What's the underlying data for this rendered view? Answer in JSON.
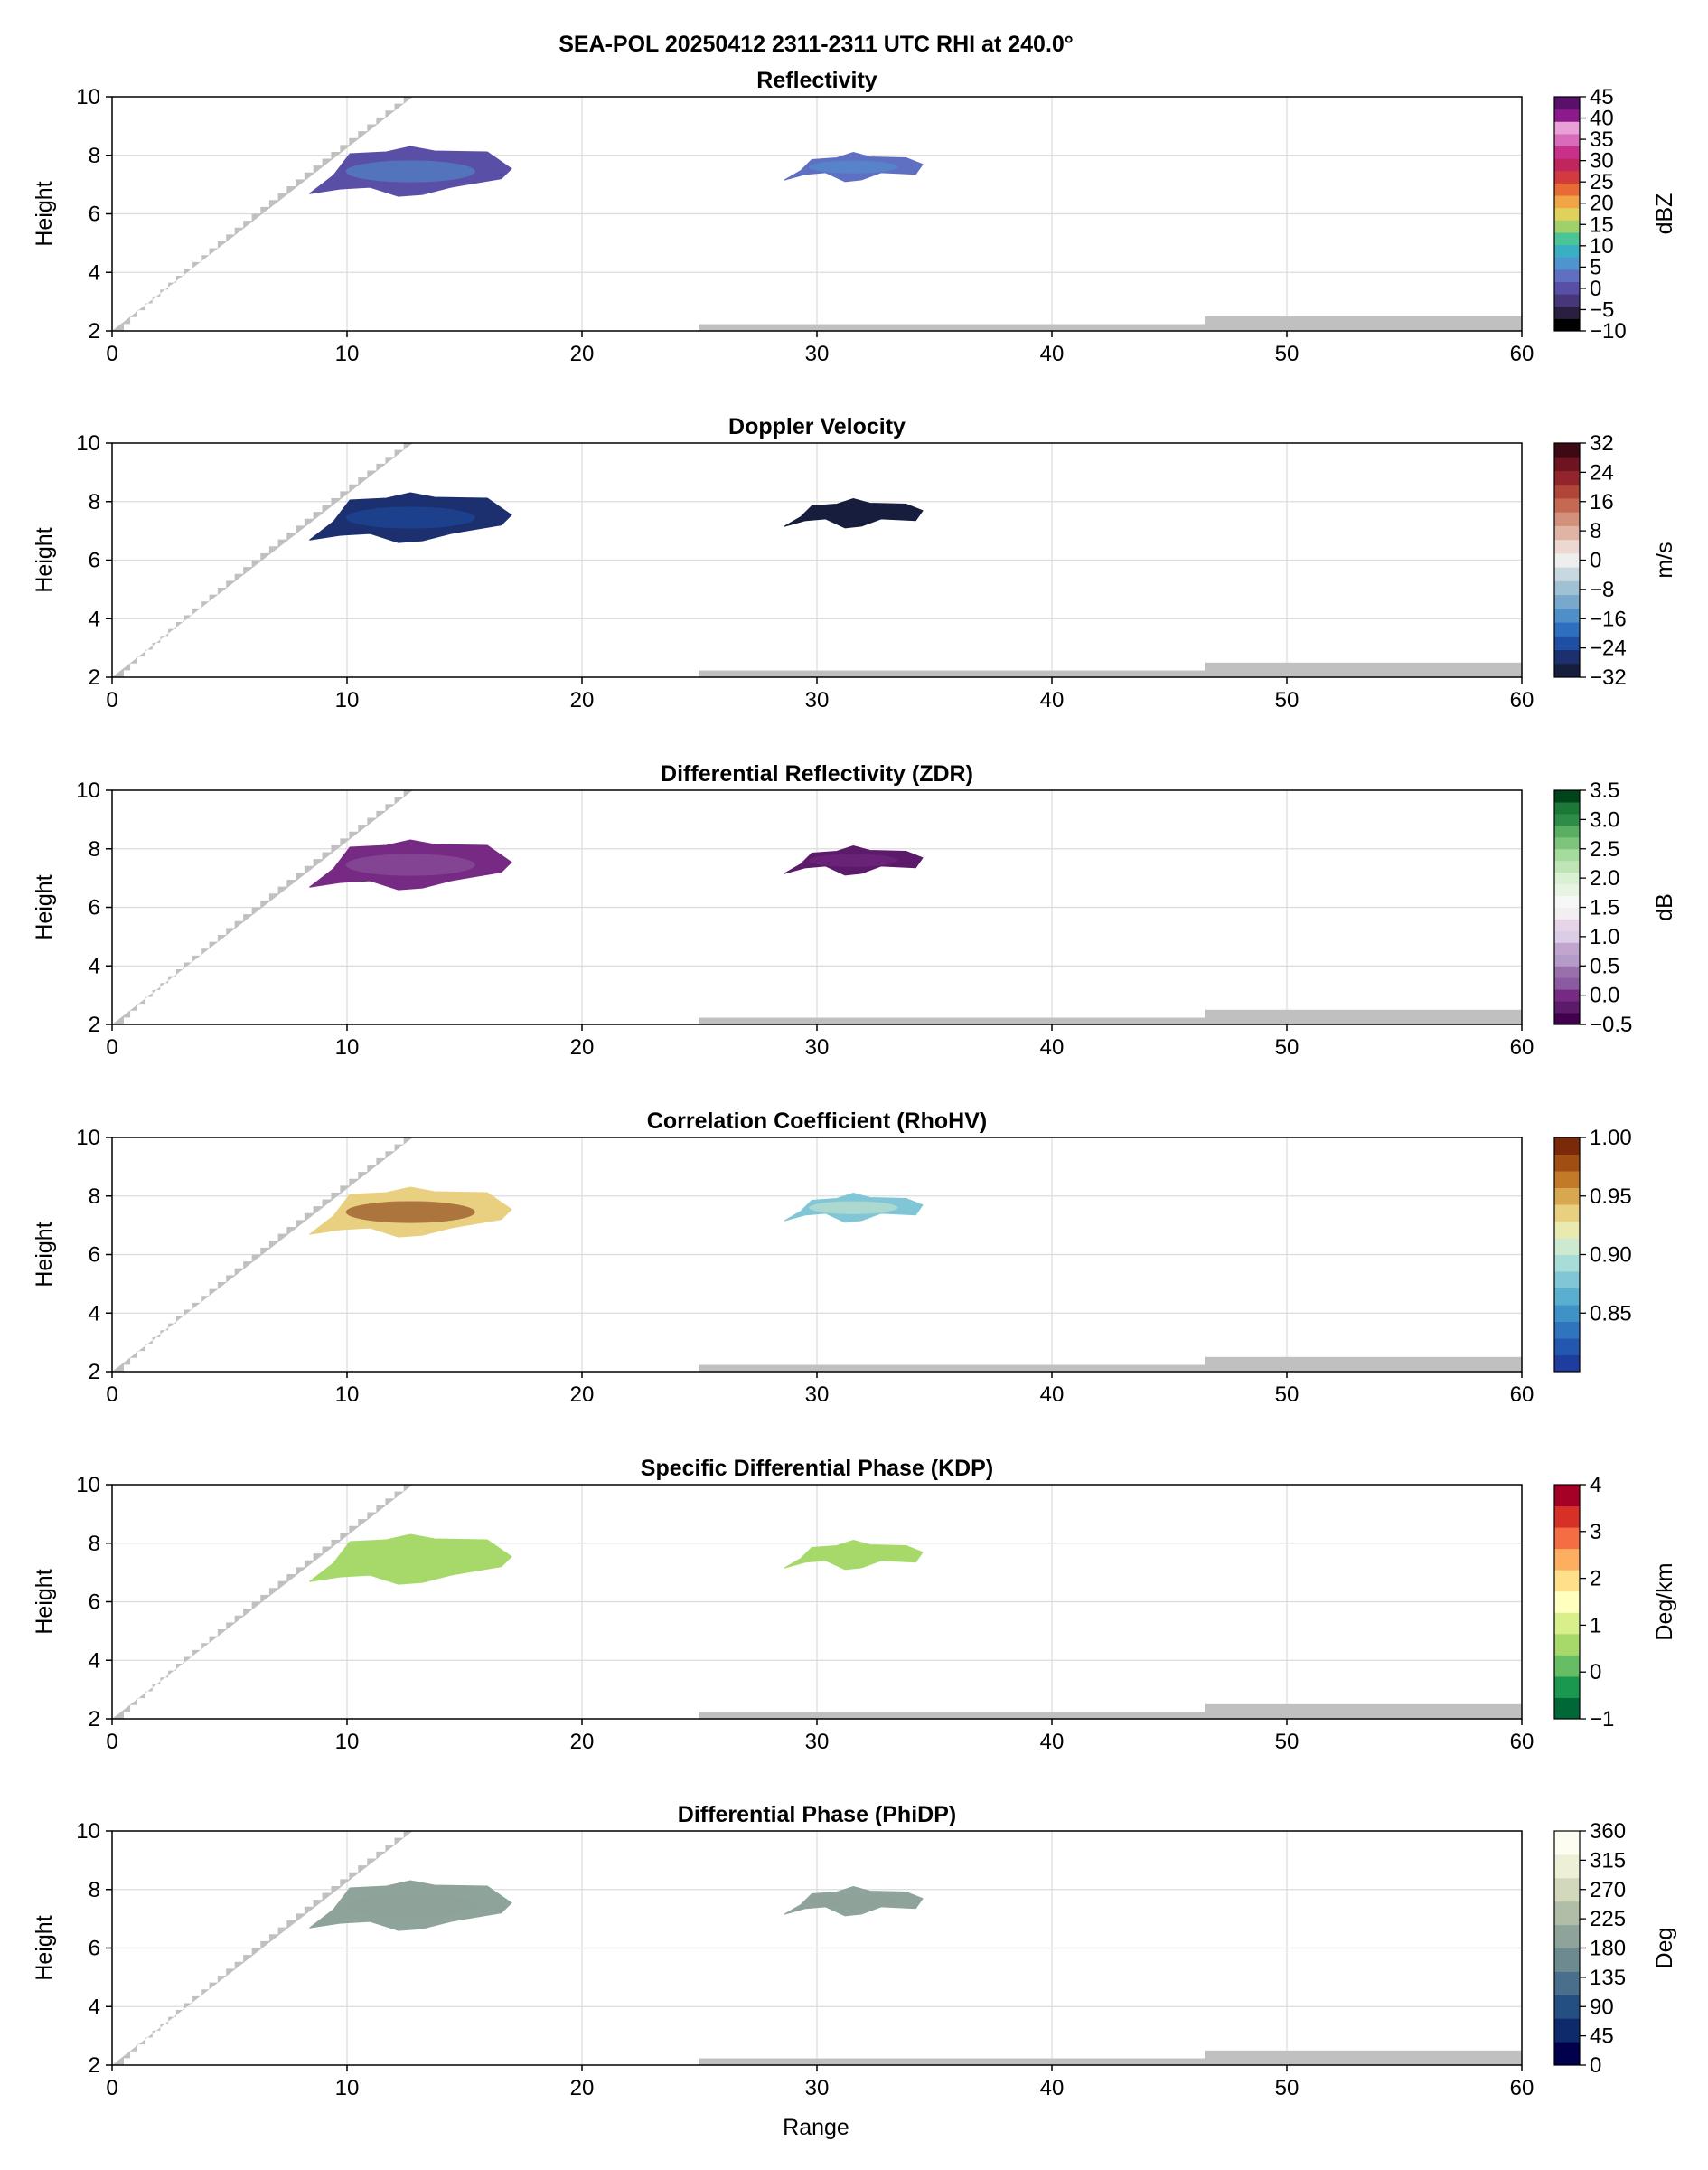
{
  "figure": {
    "suptitle": "SEA-POL 20250412 2311-2311 UTC RHI at 240.0°",
    "xlabel": "Range"
  },
  "colors": {
    "background_fill": "#c0c0c0",
    "grid": "#dcdcdc"
  },
  "chart_data": [
    {
      "type": "heatmap",
      "title": "Reflectivity",
      "xlabel": "",
      "ylabel": "Height",
      "xlim": [
        0,
        60
      ],
      "ylim": [
        2,
        10
      ],
      "xticks": [
        "0",
        "10",
        "20",
        "30",
        "40",
        "50",
        "60"
      ],
      "yticks": [
        "2",
        "4",
        "6",
        "8",
        "10"
      ],
      "grid": true,
      "colorbar": {
        "label": "dBZ",
        "range": [
          -10,
          45
        ],
        "ticks": [
          "45",
          "40",
          "35",
          "30",
          "25",
          "20",
          "15",
          "10",
          "5",
          "0",
          "−5",
          "−10"
        ],
        "tick_values": [
          45,
          40,
          35,
          30,
          25,
          20,
          15,
          10,
          5,
          0,
          -5,
          -10
        ],
        "colors": [
          "#000000",
          "#2b1f3f",
          "#47377a",
          "#5a4fa6",
          "#5f6fc2",
          "#4f93cf",
          "#3aaec2",
          "#4cc596",
          "#9fd06a",
          "#e0d15c",
          "#f0a646",
          "#e86a36",
          "#d23a3e",
          "#c0265e",
          "#c8308a",
          "#d96cb8",
          "#e8a0d6",
          "#8c1a8c",
          "#5a0f6a"
        ]
      },
      "echoes": [
        {
          "range_start": 8.4,
          "range_end": 17.0,
          "height_bottom": 6.6,
          "height_top": 8.3,
          "values": [
            -3,
            4
          ]
        },
        {
          "range_start": 28.6,
          "range_end": 34.5,
          "height_bottom": 7.1,
          "height_top": 8.1,
          "values": [
            1,
            5
          ]
        }
      ]
    },
    {
      "type": "heatmap",
      "title": "Doppler Velocity",
      "xlabel": "",
      "ylabel": "Height",
      "xlim": [
        0,
        60
      ],
      "ylim": [
        2,
        10
      ],
      "xticks": [
        "0",
        "10",
        "20",
        "30",
        "40",
        "50",
        "60"
      ],
      "yticks": [
        "2",
        "4",
        "6",
        "8",
        "10"
      ],
      "grid": true,
      "colorbar": {
        "label": "m/s",
        "range": [
          -32,
          32
        ],
        "ticks": [
          "32",
          "24",
          "16",
          "8",
          "0",
          "−8",
          "−16",
          "−24",
          "−32"
        ],
        "tick_values": [
          32,
          24,
          16,
          8,
          0,
          -8,
          -16,
          -24,
          -32
        ],
        "colors": [
          "#171d3c",
          "#1c2f6e",
          "#1f4fa5",
          "#2e6fc0",
          "#4f8fc8",
          "#78a8cc",
          "#a0c0d4",
          "#c8d8e0",
          "#eeeeee",
          "#ecd8d0",
          "#dfb4a4",
          "#d3907a",
          "#c46a52",
          "#b0453a",
          "#94242c",
          "#6e1420",
          "#3d0a14"
        ]
      },
      "echoes": [
        {
          "range_start": 8.4,
          "range_end": 17.0,
          "height_bottom": 6.6,
          "height_top": 8.3,
          "values": [
            -28,
            -25
          ]
        },
        {
          "range_start": 28.6,
          "range_end": 34.5,
          "height_bottom": 7.1,
          "height_top": 8.1,
          "values": [
            -32,
            -31
          ]
        }
      ]
    },
    {
      "type": "heatmap",
      "title": "Differential Reflectivity (ZDR)",
      "xlabel": "",
      "ylabel": "Height",
      "xlim": [
        0,
        60
      ],
      "ylim": [
        2,
        10
      ],
      "xticks": [
        "0",
        "10",
        "20",
        "30",
        "40",
        "50",
        "60"
      ],
      "yticks": [
        "2",
        "4",
        "6",
        "8",
        "10"
      ],
      "grid": true,
      "colorbar": {
        "label": "dB",
        "range": [
          -0.5,
          3.5
        ],
        "ticks": [
          "3.5",
          "3.0",
          "2.5",
          "2.0",
          "1.5",
          "1.0",
          "0.5",
          "0.0",
          "−0.5"
        ],
        "tick_values": [
          3.5,
          3.0,
          2.5,
          2.0,
          1.5,
          1.0,
          0.5,
          0.0,
          -0.5
        ],
        "colors": [
          "#40004b",
          "#5c1a6b",
          "#762a83",
          "#8c5aa0",
          "#9970ab",
          "#b59cc8",
          "#c2a5cf",
          "#dccde6",
          "#e7d4e8",
          "#f2eef2",
          "#f7f7f7",
          "#e8f3e3",
          "#d9f0d3",
          "#bfe5b6",
          "#a6dba0",
          "#7fc47d",
          "#5aae61",
          "#2e8c48",
          "#1b7837",
          "#00441b"
        ]
      },
      "echoes": [
        {
          "range_start": 8.4,
          "range_end": 17.0,
          "height_bottom": 6.6,
          "height_top": 8.3,
          "values": [
            -0.5,
            0.2
          ]
        },
        {
          "range_start": 28.6,
          "range_end": 34.5,
          "height_bottom": 7.1,
          "height_top": 8.1,
          "values": [
            -0.5,
            0.0
          ]
        }
      ]
    },
    {
      "type": "heatmap",
      "title": "Correlation Coefficient (RhoHV)",
      "xlabel": "",
      "ylabel": "Height",
      "xlim": [
        0,
        60
      ],
      "ylim": [
        2,
        10
      ],
      "xticks": [
        "0",
        "10",
        "20",
        "30",
        "40",
        "50",
        "60"
      ],
      "yticks": [
        "2",
        "4",
        "6",
        "8",
        "10"
      ],
      "grid": true,
      "colorbar": {
        "label": "",
        "range": [
          0.8,
          1.0
        ],
        "ticks": [
          "1.00",
          "0.95",
          "0.90",
          "0.85"
        ],
        "tick_values": [
          1.0,
          0.95,
          0.9,
          0.85
        ],
        "colors": [
          "#1f3d9c",
          "#2458b0",
          "#2f74bd",
          "#3f92c6",
          "#5aaecf",
          "#80c6d6",
          "#a8dcd8",
          "#cde9cf",
          "#eaeab0",
          "#e9d080",
          "#d8a850",
          "#c27a28",
          "#a14e12",
          "#7a2a08"
        ]
      },
      "echoes": [
        {
          "range_start": 8.4,
          "range_end": 17.0,
          "height_bottom": 6.6,
          "height_top": 8.3,
          "values": [
            0.88,
            1.0
          ]
        },
        {
          "range_start": 28.6,
          "range_end": 34.5,
          "height_bottom": 7.1,
          "height_top": 8.1,
          "values": [
            0.86,
            0.9
          ]
        }
      ]
    },
    {
      "type": "heatmap",
      "title": "Specific Differential Phase (KDP)",
      "xlabel": "",
      "ylabel": "Height",
      "xlim": [
        0,
        60
      ],
      "ylim": [
        2,
        10
      ],
      "xticks": [
        "0",
        "10",
        "20",
        "30",
        "40",
        "50",
        "60"
      ],
      "yticks": [
        "2",
        "4",
        "6",
        "8",
        "10"
      ],
      "grid": true,
      "colorbar": {
        "label": "Deg/km",
        "range": [
          -1,
          4
        ],
        "ticks": [
          "4",
          "3",
          "2",
          "1",
          "0",
          "−1"
        ],
        "tick_values": [
          4,
          3,
          2,
          1,
          0,
          -1
        ],
        "colors": [
          "#006837",
          "#1a9850",
          "#66bd63",
          "#a6d96a",
          "#d9ef8b",
          "#ffffbf",
          "#fee08b",
          "#fdae61",
          "#f46d43",
          "#d73027",
          "#a50026"
        ]
      },
      "echoes": [
        {
          "range_start": 8.4,
          "range_end": 17.0,
          "height_bottom": 6.6,
          "height_top": 8.3,
          "values": [
            0.4,
            0.6
          ]
        },
        {
          "range_start": 28.6,
          "range_end": 34.5,
          "height_bottom": 7.1,
          "height_top": 8.1,
          "values": [
            0.4,
            0.5
          ]
        }
      ]
    },
    {
      "type": "heatmap",
      "title": "Differential Phase (PhiDP)",
      "xlabel": "Range",
      "ylabel": "Height",
      "xlim": [
        0,
        60
      ],
      "ylim": [
        2,
        10
      ],
      "xticks": [
        "0",
        "10",
        "20",
        "30",
        "40",
        "50",
        "60"
      ],
      "yticks": [
        "2",
        "4",
        "6",
        "8",
        "10"
      ],
      "grid": true,
      "colorbar": {
        "label": "Deg",
        "range": [
          0,
          360
        ],
        "ticks": [
          "360",
          "315",
          "270",
          "225",
          "180",
          "135",
          "90",
          "45",
          "0"
        ],
        "tick_values": [
          360,
          315,
          270,
          225,
          180,
          135,
          90,
          45,
          0
        ],
        "colors": [
          "#00004c",
          "#0f2a6a",
          "#244f82",
          "#4a6f8c",
          "#6d8a90",
          "#8ea39a",
          "#b0bea8",
          "#d2d8bc",
          "#edefd6",
          "#fdfdf2"
        ]
      },
      "echoes": [
        {
          "range_start": 8.4,
          "range_end": 17.0,
          "height_bottom": 6.6,
          "height_top": 8.3,
          "values": [
            175,
            185
          ]
        },
        {
          "range_start": 28.6,
          "range_end": 34.5,
          "height_bottom": 7.1,
          "height_top": 8.1,
          "values": [
            175,
            185
          ]
        }
      ]
    }
  ]
}
